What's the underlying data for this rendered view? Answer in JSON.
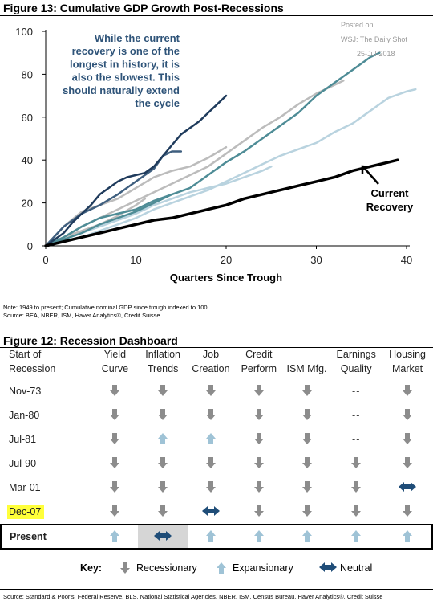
{
  "figure13": {
    "title": "Figure 13: Cumulative GDP Growth Post-Recessions",
    "watermark": [
      "Posted on",
      "WSJ: The Daily Shot",
      "25-Jul-2018"
    ],
    "annotation": [
      "While the current",
      "recovery is one of the",
      "longest in history, it is",
      "also the slowest. This",
      "should naturally extend",
      "the cycle"
    ],
    "current_label": [
      "Current",
      "Recovery"
    ],
    "note": "Note: 1949 to present; Cumulative nominal GDP since trough indexed to 100",
    "source": "Source: BEA, NBER, ISM, Haver Analytics®, Credit Suisse",
    "colors": {
      "black": "#000000",
      "navy": "#1f3b5c",
      "slate": "#3f5f7f",
      "teal": "#4e8c96",
      "gray": "#bcbcbc",
      "lightblue": "#b9d3df",
      "annotation": "#2f5479"
    }
  },
  "chart_data": {
    "type": "line",
    "xlabel": "Quarters Since Trough",
    "ylabel": "",
    "xlim": [
      0,
      40
    ],
    "ylim": [
      0,
      100
    ],
    "xticks": [
      0,
      10,
      20,
      30,
      40
    ],
    "yticks": [
      0,
      20,
      40,
      60,
      80,
      100
    ],
    "grid": false,
    "series": [
      {
        "color": "#bcbcbc",
        "width": 2.5,
        "points": [
          [
            0,
            0
          ],
          [
            2,
            4
          ],
          [
            4,
            9
          ],
          [
            6,
            13
          ],
          [
            8,
            17
          ],
          [
            10,
            21
          ],
          [
            12,
            25
          ],
          [
            14,
            29
          ],
          [
            16,
            33
          ],
          [
            18,
            37
          ],
          [
            20,
            43
          ],
          [
            22,
            49
          ],
          [
            24,
            55
          ],
          [
            26,
            60
          ],
          [
            28,
            66
          ],
          [
            30,
            71
          ],
          [
            32,
            75
          ],
          [
            33,
            77
          ]
        ]
      },
      {
        "color": "#bcbcbc",
        "width": 2.5,
        "points": [
          [
            0,
            0
          ],
          [
            2,
            9
          ],
          [
            4,
            16
          ],
          [
            6,
            19
          ],
          [
            8,
            22
          ],
          [
            10,
            27
          ],
          [
            12,
            32
          ],
          [
            14,
            35
          ],
          [
            16,
            37
          ],
          [
            18,
            41
          ],
          [
            20,
            46
          ]
        ]
      },
      {
        "color": "#bcbcbc",
        "width": 2.5,
        "points": [
          [
            0,
            0
          ],
          [
            2,
            4
          ],
          [
            4,
            7
          ],
          [
            6,
            10
          ],
          [
            8,
            14
          ],
          [
            10,
            19
          ],
          [
            11,
            22
          ]
        ]
      },
      {
        "color": "#b9d3df",
        "width": 2.5,
        "points": [
          [
            0,
            0
          ],
          [
            2,
            2
          ],
          [
            4,
            4
          ],
          [
            6,
            7
          ],
          [
            8,
            10
          ],
          [
            10,
            13
          ],
          [
            12,
            17
          ],
          [
            14,
            20
          ],
          [
            16,
            23
          ],
          [
            18,
            26
          ],
          [
            20,
            30
          ],
          [
            22,
            34
          ],
          [
            24,
            38
          ],
          [
            26,
            42
          ],
          [
            28,
            45
          ],
          [
            30,
            48
          ],
          [
            32,
            53
          ],
          [
            34,
            57
          ],
          [
            36,
            63
          ],
          [
            38,
            69
          ],
          [
            40,
            72
          ],
          [
            41,
            73
          ]
        ]
      },
      {
        "color": "#b9d3df",
        "width": 2.5,
        "points": [
          [
            0,
            0
          ],
          [
            2,
            3
          ],
          [
            4,
            6
          ],
          [
            6,
            9
          ],
          [
            8,
            12
          ],
          [
            10,
            15
          ],
          [
            12,
            19
          ],
          [
            14,
            22
          ],
          [
            16,
            25
          ],
          [
            18,
            27
          ],
          [
            20,
            29
          ],
          [
            22,
            32
          ],
          [
            24,
            35
          ],
          [
            25,
            37
          ]
        ]
      },
      {
        "color": "#4e8c96",
        "width": 2.5,
        "points": [
          [
            0,
            0
          ],
          [
            2,
            3
          ],
          [
            4,
            6
          ],
          [
            6,
            10
          ],
          [
            8,
            13
          ],
          [
            10,
            16
          ],
          [
            12,
            20
          ],
          [
            14,
            24
          ],
          [
            16,
            27
          ],
          [
            18,
            33
          ],
          [
            20,
            39
          ],
          [
            22,
            44
          ],
          [
            24,
            50
          ],
          [
            26,
            56
          ],
          [
            28,
            62
          ],
          [
            30,
            70
          ],
          [
            32,
            76
          ],
          [
            34,
            82
          ],
          [
            36,
            88
          ],
          [
            37,
            90
          ]
        ]
      },
      {
        "color": "#4e8c96",
        "width": 2.5,
        "points": [
          [
            0,
            0
          ],
          [
            2,
            4
          ],
          [
            4,
            9
          ],
          [
            6,
            13
          ],
          [
            8,
            15
          ],
          [
            10,
            17
          ],
          [
            12,
            21
          ],
          [
            14,
            24
          ]
        ]
      },
      {
        "color": "#3f5f7f",
        "width": 2.5,
        "points": [
          [
            0,
            0
          ],
          [
            2,
            9
          ],
          [
            4,
            15
          ],
          [
            6,
            19
          ],
          [
            8,
            24
          ],
          [
            10,
            30
          ],
          [
            12,
            36
          ],
          [
            13,
            42
          ],
          [
            14,
            44
          ],
          [
            15,
            44
          ]
        ]
      },
      {
        "color": "#1f3b5c",
        "width": 2.5,
        "points": [
          [
            0,
            0
          ],
          [
            2,
            6
          ],
          [
            3,
            11
          ],
          [
            4,
            15
          ],
          [
            5,
            19
          ],
          [
            6,
            24
          ],
          [
            7,
            27
          ],
          [
            8,
            30
          ],
          [
            9,
            32
          ],
          [
            10,
            33
          ],
          [
            11,
            34
          ],
          [
            12,
            37
          ],
          [
            13,
            42
          ],
          [
            14,
            47
          ],
          [
            15,
            52
          ],
          [
            17,
            58
          ],
          [
            18,
            62
          ],
          [
            19,
            66
          ],
          [
            20,
            70
          ]
        ]
      },
      {
        "color": "#000000",
        "width": 3.5,
        "points": [
          [
            0,
            0
          ],
          [
            2,
            2
          ],
          [
            4,
            4
          ],
          [
            6,
            6
          ],
          [
            8,
            8
          ],
          [
            10,
            10
          ],
          [
            12,
            12
          ],
          [
            14,
            13
          ],
          [
            16,
            15
          ],
          [
            18,
            17
          ],
          [
            20,
            19
          ],
          [
            22,
            22
          ],
          [
            24,
            24
          ],
          [
            26,
            26
          ],
          [
            28,
            28
          ],
          [
            30,
            30
          ],
          [
            32,
            32
          ],
          [
            34,
            35
          ],
          [
            36,
            37
          ],
          [
            38,
            39
          ],
          [
            39,
            40
          ]
        ]
      }
    ]
  },
  "figure12": {
    "title": "Figure 12: Recession Dashboard",
    "headers": [
      [
        "Start of",
        "Recession"
      ],
      [
        "Yield",
        "Curve"
      ],
      [
        "Inflation",
        "Trends"
      ],
      [
        "Job",
        "Creation"
      ],
      [
        "Credit",
        "Perform"
      ],
      [
        "",
        "ISM Mfg."
      ],
      [
        "Earnings",
        "Quality"
      ],
      [
        "Housing",
        "Market"
      ]
    ],
    "rows": [
      {
        "label": "Nov-73",
        "cells": [
          "down",
          "down",
          "down",
          "down",
          "down",
          "--",
          "down"
        ]
      },
      {
        "label": "Jan-80",
        "cells": [
          "down",
          "down",
          "down",
          "down",
          "down",
          "--",
          "down"
        ]
      },
      {
        "label": "Jul-81",
        "cells": [
          "down",
          "up",
          "up",
          "down",
          "down",
          "--",
          "down"
        ]
      },
      {
        "label": "Jul-90",
        "cells": [
          "down",
          "down",
          "down",
          "down",
          "down",
          "down",
          "down"
        ]
      },
      {
        "label": "Mar-01",
        "cells": [
          "down",
          "down",
          "down",
          "down",
          "down",
          "down",
          "neutral"
        ]
      },
      {
        "label": "Dec-07",
        "cells": [
          "down",
          "down",
          "neutral",
          "down",
          "down",
          "down",
          "down"
        ],
        "highlight": true
      },
      {
        "label": "Present",
        "cells": [
          "up",
          "neutral",
          "up",
          "up",
          "up",
          "up",
          "up"
        ],
        "present": true
      }
    ],
    "key_label": "Key:",
    "key": {
      "down": "Recessionary",
      "up": "Expansionary",
      "neutral": "Neutral"
    },
    "source": "Source: Standard & Poor's, Federal Reserve, BLS, National Statistical Agencies, NBER, ISM, Census Bureau, Haver Analytics®, Credit Suisse",
    "colors": {
      "down": "#8c8c8c",
      "up": "#9fc3d6",
      "neutral": "#1f4d78",
      "present_fill": "#d6d6d6",
      "highlight": "#ffff3a"
    }
  }
}
